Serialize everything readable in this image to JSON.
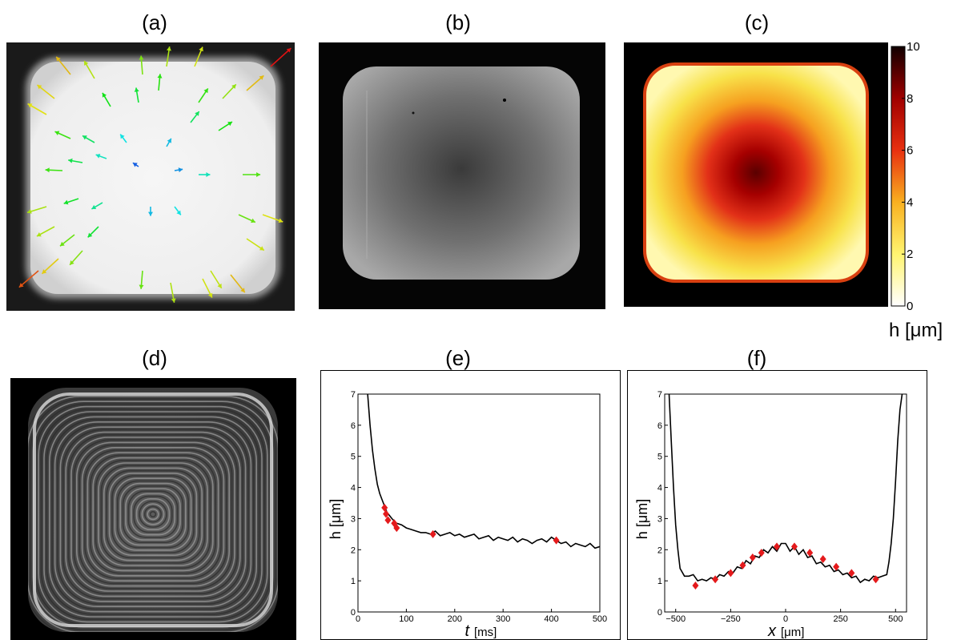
{
  "panels": {
    "a": {
      "label": "(a)"
    },
    "b": {
      "label": "(b)"
    },
    "c": {
      "label": "(c)"
    },
    "d": {
      "label": "(d)"
    },
    "e": {
      "label": "(e)"
    },
    "f": {
      "label": "(f)"
    }
  },
  "colorbar": {
    "ticks": [
      "0",
      "2",
      "4",
      "6",
      "8",
      "10"
    ],
    "unit_label": "h [μm]",
    "range": [
      0,
      10
    ],
    "colormap": "hot-reversed"
  },
  "chart_data": [
    {
      "panel": "e",
      "type": "line",
      "ylabel": "h [μm]",
      "xlabel_var": "t",
      "xlabel_unit": "[ms]",
      "xlim": [
        0,
        500
      ],
      "ylim": [
        0,
        7
      ],
      "xticks": [
        "0",
        "100",
        "200",
        "300",
        "400",
        "500"
      ],
      "yticks": [
        "0",
        "1",
        "2",
        "3",
        "4",
        "5",
        "6",
        "7"
      ],
      "series": [
        {
          "style": "black-line",
          "x": [
            20,
            25,
            30,
            35,
            40,
            45,
            50,
            55,
            60,
            65,
            70,
            80,
            90,
            100,
            110,
            120,
            130,
            140,
            150,
            160,
            170,
            180,
            190,
            200,
            210,
            220,
            230,
            240,
            250,
            260,
            270,
            280,
            290,
            300,
            310,
            320,
            330,
            340,
            350,
            360,
            370,
            380,
            390,
            400,
            410,
            420,
            430,
            440,
            450,
            460,
            470,
            480,
            490,
            500
          ],
          "y": [
            7.0,
            6.0,
            5.2,
            4.6,
            4.1,
            3.8,
            3.6,
            3.4,
            3.2,
            3.1,
            3.0,
            2.85,
            2.8,
            2.7,
            2.65,
            2.6,
            2.55,
            2.55,
            2.5,
            2.6,
            2.45,
            2.5,
            2.55,
            2.45,
            2.5,
            2.4,
            2.45,
            2.5,
            2.35,
            2.4,
            2.45,
            2.3,
            2.4,
            2.35,
            2.3,
            2.4,
            2.25,
            2.35,
            2.3,
            2.2,
            2.3,
            2.35,
            2.25,
            2.4,
            2.3,
            2.2,
            2.25,
            2.1,
            2.2,
            2.15,
            2.1,
            2.2,
            2.05,
            2.1
          ]
        },
        {
          "style": "red-diamond",
          "x": [
            55,
            58,
            62,
            75,
            80,
            155,
            410
          ],
          "y": [
            3.35,
            3.15,
            2.95,
            2.85,
            2.7,
            2.5,
            2.3
          ]
        }
      ]
    },
    {
      "panel": "f",
      "type": "line",
      "ylabel": "h [μm]",
      "xlabel_var": "x",
      "xlabel_unit": "[μm]",
      "xlim": [
        -550,
        550
      ],
      "ylim": [
        0,
        7
      ],
      "xticks": [
        "−500",
        "−250",
        "0",
        "250",
        "500"
      ],
      "yticks": [
        "0",
        "1",
        "2",
        "3",
        "4",
        "5",
        "6",
        "7"
      ],
      "series": [
        {
          "style": "black-line",
          "x": [
            -530,
            -520,
            -510,
            -500,
            -490,
            -480,
            -460,
            -440,
            -420,
            -400,
            -380,
            -360,
            -340,
            -320,
            -300,
            -280,
            -260,
            -240,
            -220,
            -200,
            -180,
            -160,
            -140,
            -120,
            -100,
            -80,
            -60,
            -40,
            -20,
            0,
            20,
            40,
            60,
            80,
            100,
            120,
            140,
            160,
            180,
            200,
            220,
            240,
            260,
            280,
            300,
            320,
            340,
            360,
            380,
            400,
            420,
            440,
            460,
            470,
            480,
            490,
            500,
            510,
            520,
            530
          ],
          "y": [
            7.0,
            5.5,
            4.0,
            2.8,
            2.0,
            1.4,
            1.15,
            1.15,
            1.2,
            1.0,
            1.05,
            1.0,
            1.1,
            1.05,
            1.2,
            1.15,
            1.3,
            1.25,
            1.45,
            1.4,
            1.65,
            1.55,
            1.8,
            1.75,
            2.0,
            1.9,
            2.1,
            1.95,
            2.2,
            2.2,
            1.95,
            2.1,
            1.85,
            2.0,
            1.75,
            1.8,
            1.55,
            1.6,
            1.45,
            1.5,
            1.3,
            1.35,
            1.2,
            1.25,
            1.1,
            1.15,
            0.95,
            1.05,
            1.0,
            1.15,
            1.1,
            1.15,
            1.2,
            1.6,
            2.2,
            3.0,
            4.2,
            5.5,
            6.5,
            7.0
          ]
        },
        {
          "style": "red-diamond",
          "x": [
            -410,
            -320,
            -250,
            -195,
            -150,
            -110,
            -40,
            40,
            110,
            170,
            230,
            300,
            410
          ],
          "y": [
            0.85,
            1.05,
            1.25,
            1.5,
            1.75,
            1.9,
            2.1,
            2.1,
            1.9,
            1.7,
            1.45,
            1.25,
            1.05
          ]
        }
      ]
    }
  ]
}
